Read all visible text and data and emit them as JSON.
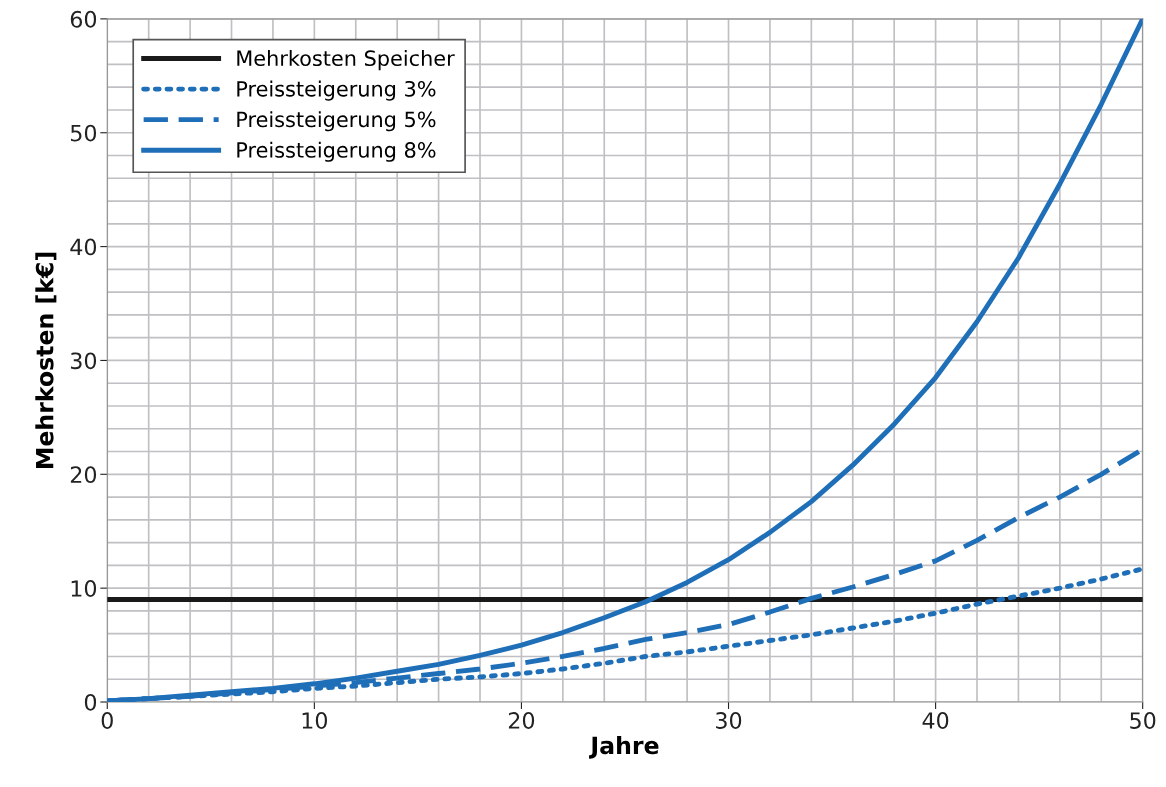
{
  "chart_data": {
    "type": "line",
    "xlabel": "Jahre",
    "ylabel": "Mehrkosten [k€]",
    "xlim": [
      0,
      50
    ],
    "ylim": [
      0,
      60
    ],
    "xticks": [
      0,
      {
        "value": 2,
        "label": null
      },
      {
        "value": 4,
        "label": null
      },
      {
        "value": 6,
        "label": null
      },
      {
        "value": 8,
        "label": null
      },
      10,
      {
        "value": 12,
        "label": null
      },
      {
        "value": 14,
        "label": null
      },
      {
        "value": 16,
        "label": null
      },
      {
        "value": 18,
        "label": null
      },
      20,
      {
        "value": 22,
        "label": null
      },
      {
        "value": 24,
        "label": null
      },
      {
        "value": 26,
        "label": null
      },
      {
        "value": 28,
        "label": null
      },
      30,
      {
        "value": 32,
        "label": null
      },
      {
        "value": 34,
        "label": null
      },
      {
        "value": 36,
        "label": null
      },
      {
        "value": 38,
        "label": null
      },
      40,
      {
        "value": 42,
        "label": null
      },
      {
        "value": 44,
        "label": null
      },
      {
        "value": 46,
        "label": null
      },
      {
        "value": 48,
        "label": null
      },
      50
    ],
    "yticks": [
      0,
      {
        "value": 2,
        "label": null
      },
      {
        "value": 4,
        "label": null
      },
      {
        "value": 6,
        "label": null
      },
      {
        "value": 8,
        "label": null
      },
      10,
      {
        "value": 12,
        "label": null
      },
      {
        "value": 14,
        "label": null
      },
      {
        "value": 16,
        "label": null
      },
      {
        "value": 18,
        "label": null
      },
      20,
      {
        "value": 22,
        "label": null
      },
      {
        "value": 24,
        "label": null
      },
      {
        "value": 26,
        "label": null
      },
      {
        "value": 28,
        "label": null
      },
      30,
      {
        "value": 32,
        "label": null
      },
      {
        "value": 34,
        "label": null
      },
      {
        "value": 36,
        "label": null
      },
      {
        "value": 38,
        "label": null
      },
      40,
      {
        "value": 42,
        "label": null
      },
      {
        "value": 44,
        "label": null
      },
      {
        "value": 46,
        "label": null
      },
      {
        "value": 48,
        "label": null
      },
      50,
      {
        "value": 52,
        "label": null
      },
      {
        "value": 54,
        "label": null
      },
      {
        "value": 56,
        "label": null
      },
      {
        "value": 58,
        "label": null
      },
      60
    ],
    "grid": true,
    "legend": "top left",
    "marker": "none",
    "x": [
      0,
      2,
      4,
      6,
      8,
      10,
      12,
      14,
      16,
      18,
      20,
      22,
      24,
      26,
      28,
      30,
      32,
      34,
      36,
      38,
      40,
      42,
      44,
      46,
      48,
      50
    ],
    "series": [
      {
        "name": "Mehrkosten Speicher",
        "color": "#1a1a1a",
        "line_style": "solid",
        "x": [
          0,
          50
        ],
        "values": [
          9,
          9
        ]
      },
      {
        "name": "Preissteigerung 3%",
        "color": "#1f6fb8",
        "line_style": "dotted",
        "values": [
          0.1,
          0.3,
          0.5,
          0.7,
          0.9,
          1.2,
          1.4,
          1.7,
          2.0,
          2.2,
          2.5,
          2.9,
          3.4,
          4.0,
          4.4,
          4.9,
          5.4,
          5.9,
          6.5,
          7.1,
          7.8,
          8.6,
          9.3,
          10.0,
          10.8,
          11.7
        ]
      },
      {
        "name": "Preissteigerung 5%",
        "color": "#1f6fb8",
        "line_style": "dashed",
        "values": [
          0.1,
          0.3,
          0.5,
          0.8,
          1.1,
          1.4,
          1.7,
          2.1,
          2.5,
          2.9,
          3.4,
          4.0,
          4.7,
          5.5,
          6.1,
          6.8,
          7.9,
          9.1,
          10.1,
          11.2,
          12.4,
          14.2,
          16.2,
          18.0,
          20.0,
          22.2
        ]
      },
      {
        "name": "Preissteigerung 8%",
        "color": "#1f6fb8",
        "line_style": "solid",
        "values": [
          0.1,
          0.3,
          0.6,
          0.9,
          1.2,
          1.6,
          2.1,
          2.7,
          3.3,
          4.1,
          5.0,
          6.1,
          7.4,
          8.8,
          10.5,
          12.5,
          14.9,
          17.6,
          20.8,
          24.4,
          28.5,
          33.4,
          39.0,
          45.5,
          52.5,
          60
        ]
      }
    ]
  }
}
